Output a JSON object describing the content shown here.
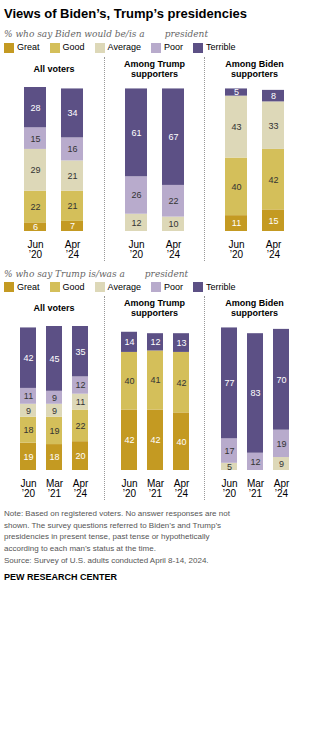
{
  "title": "Views of Biden’s, Trump’s presidencies",
  "annotations": [
    "Note: Based on registered voters. No answer responses are not\nshown. The survey questions referred to Biden’s and Trump’s\npresidencies in present tense, past tense or hypothetically\naccording to each man’s status at the time.\nSource: Survey of U.S. adults conducted April 8-14, 2024.",
    "PEW RESEARCH CENTER"
  ],
  "chart_data": [
    {
      "type": "bar",
      "subtitle": "% who say Biden would be/is a       president",
      "legend": "top",
      "title": "All voters",
      "categories": [
        "Jun\n’20",
        "Apr\n’24"
      ],
      "series": [
        {
          "name": "Great",
          "color": "#C49A22",
          "values": [
            6,
            7
          ]
        },
        {
          "name": "Good",
          "color": "#D4BF5A",
          "values": [
            22,
            21
          ]
        },
        {
          "name": "Average",
          "color": "#DDD8B8",
          "values": [
            29,
            21
          ]
        },
        {
          "name": "Poor",
          "color": "#B8ABCC",
          "values": [
            15,
            16
          ]
        },
        {
          "name": "Terrible",
          "color": "#5C5085",
          "values": [
            28,
            34
          ]
        }
      ],
      "ylim": [
        0,
        100
      ],
      "stacked": true,
      "data_labels": true,
      "tick_labels": "x"
    },
    {
      "type": "bar",
      "title": "Among Trump\nsupporters",
      "categories": [
        "Jun\n’20",
        "Apr\n’24"
      ],
      "series": [
        {
          "name": "Great",
          "color": "#C49A22",
          "values": [
            0,
            0
          ]
        },
        {
          "name": "Good",
          "color": "#D4BF5A",
          "values": [
            0,
            0
          ]
        },
        {
          "name": "Average",
          "color": "#DDD8B8",
          "values": [
            12,
            10
          ]
        },
        {
          "name": "Poor",
          "color": "#B8ABCC",
          "values": [
            26,
            22
          ]
        },
        {
          "name": "Terrible",
          "color": "#5C5085",
          "values": [
            61,
            67
          ]
        }
      ],
      "ylim": [
        0,
        100
      ],
      "stacked": true,
      "data_labels": true,
      "tick_labels": "x"
    },
    {
      "type": "bar",
      "title": "Among Biden\nsupporters",
      "categories": [
        "Jun\n’20",
        "Apr\n’24"
      ],
      "series": [
        {
          "name": "Great",
          "color": "#C49A22",
          "values": [
            11,
            15
          ]
        },
        {
          "name": "Good",
          "color": "#D4BF5A",
          "values": [
            40,
            42
          ]
        },
        {
          "name": "Average",
          "color": "#DDD8B8",
          "values": [
            43,
            33
          ]
        },
        {
          "name": "Poor",
          "color": "#B8ABCC",
          "values": [
            0,
            0
          ]
        },
        {
          "name": "Terrible",
          "color": "#5C5085",
          "values": [
            5,
            8
          ]
        }
      ],
      "ylim": [
        0,
        100
      ],
      "stacked": true,
      "data_labels": true,
      "tick_labels": "x"
    },
    {
      "type": "bar",
      "subtitle": "% who say Trump is/was a       president",
      "legend": "top",
      "title": "All voters",
      "categories": [
        "Jun\n’20",
        "Mar\n’21",
        "Apr\n’24"
      ],
      "series": [
        {
          "name": "Great",
          "color": "#C49A22",
          "values": [
            19,
            18,
            20
          ]
        },
        {
          "name": "Good",
          "color": "#D4BF5A",
          "values": [
            18,
            19,
            22
          ]
        },
        {
          "name": "Average",
          "color": "#DDD8B8",
          "values": [
            9,
            9,
            11
          ]
        },
        {
          "name": "Poor",
          "color": "#B8ABCC",
          "values": [
            11,
            9,
            12
          ]
        },
        {
          "name": "Terrible",
          "color": "#5C5085",
          "values": [
            42,
            45,
            35
          ]
        }
      ],
      "ylim": [
        0,
        100
      ],
      "stacked": true,
      "data_labels": true,
      "tick_labels": "x"
    },
    {
      "type": "bar",
      "title": "Among Trump\nsupporters",
      "categories": [
        "Jun\n’20",
        "Mar\n’21",
        "Apr\n’24"
      ],
      "series": [
        {
          "name": "Great",
          "color": "#C49A22",
          "values": [
            42,
            42,
            40
          ]
        },
        {
          "name": "Good",
          "color": "#D4BF5A",
          "values": [
            40,
            41,
            42
          ]
        },
        {
          "name": "Average",
          "color": "#DDD8B8",
          "values": [
            0,
            0,
            0
          ]
        },
        {
          "name": "Poor",
          "color": "#B8ABCC",
          "values": [
            0,
            0,
            0
          ]
        },
        {
          "name": "Terrible",
          "color": "#5C5085",
          "values": [
            14,
            12,
            13
          ]
        }
      ],
      "ylim": [
        0,
        100
      ],
      "stacked": true,
      "data_labels": true,
      "tick_labels": "x"
    },
    {
      "type": "bar",
      "title": "Among Biden\nsupporters",
      "categories": [
        "Jun\n’20",
        "Mar\n’21",
        "Apr\n’24"
      ],
      "series": [
        {
          "name": "Great",
          "color": "#C49A22",
          "values": [
            0,
            0,
            0
          ]
        },
        {
          "name": "Good",
          "color": "#D4BF5A",
          "values": [
            0,
            0,
            0
          ]
        },
        {
          "name": "Average",
          "color": "#DDD8B8",
          "values": [
            5,
            0,
            9
          ]
        },
        {
          "name": "Poor",
          "color": "#B8ABCC",
          "values": [
            17,
            12,
            19
          ]
        },
        {
          "name": "Terrible",
          "color": "#5C5085",
          "values": [
            77,
            83,
            70
          ]
        }
      ],
      "ylim": [
        0,
        100
      ],
      "stacked": true,
      "data_labels": true,
      "tick_labels": "x"
    }
  ]
}
